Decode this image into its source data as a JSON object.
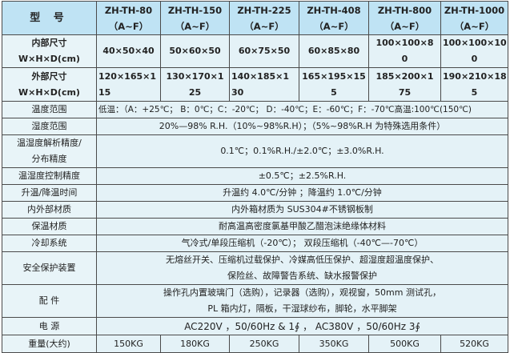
{
  "header": {
    "label": "型 号",
    "models": [
      {
        "name": "ZH-TH-80",
        "variant": "（A~F）"
      },
      {
        "name": "ZH-TH-150",
        "variant": "（A~F）"
      },
      {
        "name": "ZH-TH-225",
        "variant": "（A~F）"
      },
      {
        "name": "ZH-TH-408",
        "variant": "（A~F）"
      },
      {
        "name": "ZH-TH-800",
        "variant": "（A~F）"
      },
      {
        "name": "ZH-TH-1000",
        "variant": "（A~F）"
      }
    ]
  },
  "inner": {
    "label1": "内部尺寸",
    "label2": "W×H×D(cm)",
    "values": [
      [
        "40×50×40",
        ""
      ],
      [
        "50×60×50",
        ""
      ],
      [
        "60×75×50",
        ""
      ],
      [
        "60×85×80",
        ""
      ],
      [
        "100×100×8",
        "0"
      ],
      [
        "100×100×10",
        "0"
      ]
    ]
  },
  "outer": {
    "label1": "外部尺寸",
    "label2": "W×H×D(cm)",
    "values": [
      [
        "120×165×1",
        "15"
      ],
      [
        "130×170×1",
        "25"
      ],
      [
        "140×185×1",
        "30"
      ],
      [
        "165×195×15",
        "5"
      ],
      [
        "185×200×1",
        "75"
      ],
      [
        "190×210×18",
        "5"
      ]
    ]
  },
  "rows": [
    {
      "label": "温度范围",
      "value": "低温：（A：+25℃； B：0℃；C：-20℃； D：-40℃；E：-60℃；F：-70℃高温:100℃(150℃)"
    },
    {
      "label": "湿度范围",
      "value": "20%—98% R.H.（10%~98%R.H）；（5%~98%R.H 为特殊选用条件）"
    },
    {
      "label": "温湿度解析精度/",
      "label2": "分布精度",
      "value": "0.1℃；0.1%R.H./±2.0℃；±3.0%R.H."
    },
    {
      "label": "温湿度控制精度",
      "value": "±0.5℃；±2.5%R.H."
    },
    {
      "label": "升温/降温时间",
      "value": "升温约 4.0℃/分钟 ；降温约 1.0℃/分钟"
    },
    {
      "label": "内外部材质",
      "value": "内外箱材质为 SUS304#不锈钢板制"
    },
    {
      "label": "保温材质",
      "value": "耐高温高密度氯基甲酸乙醋泡沫绝缘体材料"
    },
    {
      "label": "冷却系统",
      "value": "气冷式/单段压缩机（-20℃）； 双段压缩机（-40℃—-70℃）"
    },
    {
      "label": "安全保护装置",
      "value": "无熔丝开关、压缩机过载保护、冷媒高低压保护、超湿度超温度保护、",
      "value2": "保险丝、故障警告系统、缺水报警保护"
    },
    {
      "label": "配 件",
      "value": "操作孔内置玻璃门（选购），记录器（选购），观视窗，50mm 测试孔，",
      "value2": "PL 箱内灯，隔板，干湿球纱布，脚轮，水平脚架"
    },
    {
      "label": "电 源",
      "value": "AC220V ，50/60Hz & 1∮ ， AC380V ，50/60Hz 3∮"
    }
  ],
  "weight": {
    "label": "重量(大约)",
    "values": [
      "150KG",
      "180KG",
      "250KG",
      "350KG",
      "500KG",
      "520KG"
    ]
  }
}
